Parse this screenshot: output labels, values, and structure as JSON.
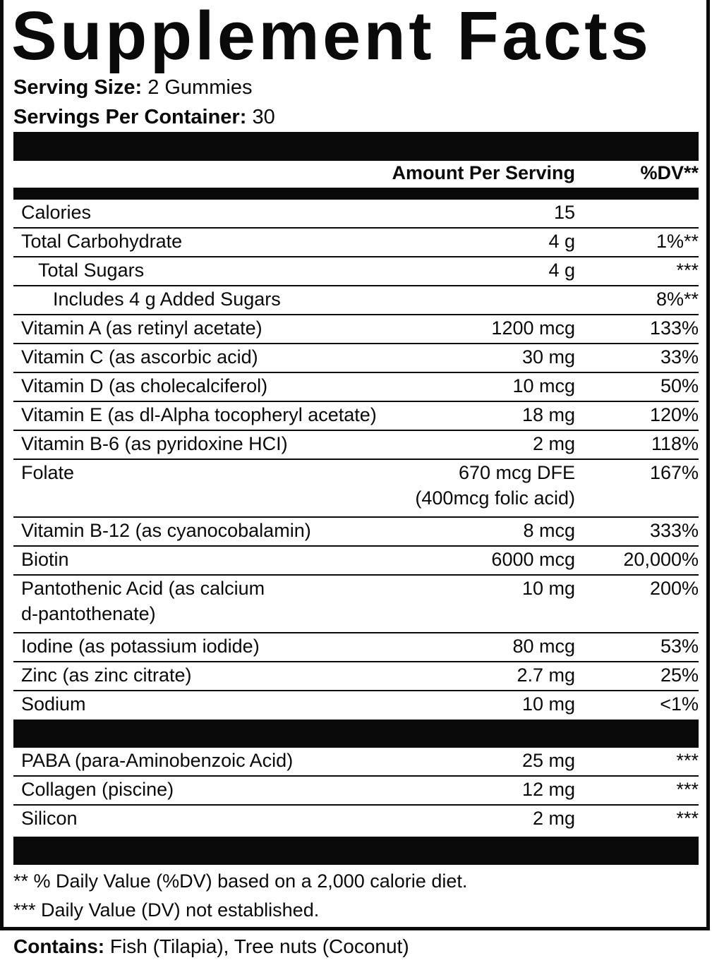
{
  "title": "Supplement Facts",
  "serving_size": {
    "label": "Serving Size:",
    "value": "2 Gummies"
  },
  "servings_per_container": {
    "label": "Servings Per Container:",
    "value": "30"
  },
  "header": {
    "amount": "Amount Per Serving",
    "dv": "%DV**"
  },
  "nutrients": [
    {
      "name": "Calories",
      "amount": "15",
      "dv": ""
    },
    {
      "name": "Total Carbohydrate",
      "amount": "4 g",
      "dv": "1%**"
    },
    {
      "name": "Total Sugars",
      "amount": "4 g",
      "dv": "***"
    },
    {
      "name": "Includes 4 g Added Sugars",
      "amount": "",
      "dv": "8%**"
    },
    {
      "name": "Vitamin A (as retinyl acetate)",
      "amount": "1200 mcg",
      "dv": "133%"
    },
    {
      "name": "Vitamin C (as ascorbic acid)",
      "amount": "30 mg",
      "dv": "33%"
    },
    {
      "name": "Vitamin D (as cholecalciferol)",
      "amount": "10 mcg",
      "dv": "50%"
    },
    {
      "name": "Vitamin E (as dl-Alpha tocopheryl acetate)",
      "amount": "18 mg",
      "dv": "120%"
    },
    {
      "name": "Vitamin B-6 (as pyridoxine HCI)",
      "amount": "2 mg",
      "dv": "118%"
    },
    {
      "name": "Folate",
      "amount": "670 mcg DFE\n(400mcg folic acid)",
      "dv": "167%"
    },
    {
      "name": "Vitamin B-12 (as cyanocobalamin)",
      "amount": "8 mcg",
      "dv": "333%"
    },
    {
      "name": "Biotin",
      "amount": "6000 mcg",
      "dv": "20,000%"
    },
    {
      "name": "Pantothenic Acid (as calcium\nd-pantothenate)",
      "amount": "10 mg",
      "dv": "200%"
    },
    {
      "name": "Iodine (as potassium iodide)",
      "amount": "80 mcg",
      "dv": "53%"
    },
    {
      "name": "Zinc (as zinc citrate)",
      "amount": "2.7 mg",
      "dv": "25%"
    },
    {
      "name": "Sodium",
      "amount": "10 mg",
      "dv": "<1%"
    }
  ],
  "other_ingredients": [
    {
      "name": "PABA (para-Aminobenzoic Acid)",
      "amount": "25 mg",
      "dv": "***"
    },
    {
      "name": "Collagen (piscine)",
      "amount": "12 mg",
      "dv": "***"
    },
    {
      "name": "Silicon",
      "amount": "2 mg",
      "dv": "***"
    }
  ],
  "footnotes": [
    "** % Daily Value (%DV) based on a 2,000 calorie diet.",
    "*** Daily Value (DV) not established."
  ],
  "contains": {
    "label": "Contains:",
    "value": "Fish (Tilapia), Tree nuts (Coconut)"
  }
}
